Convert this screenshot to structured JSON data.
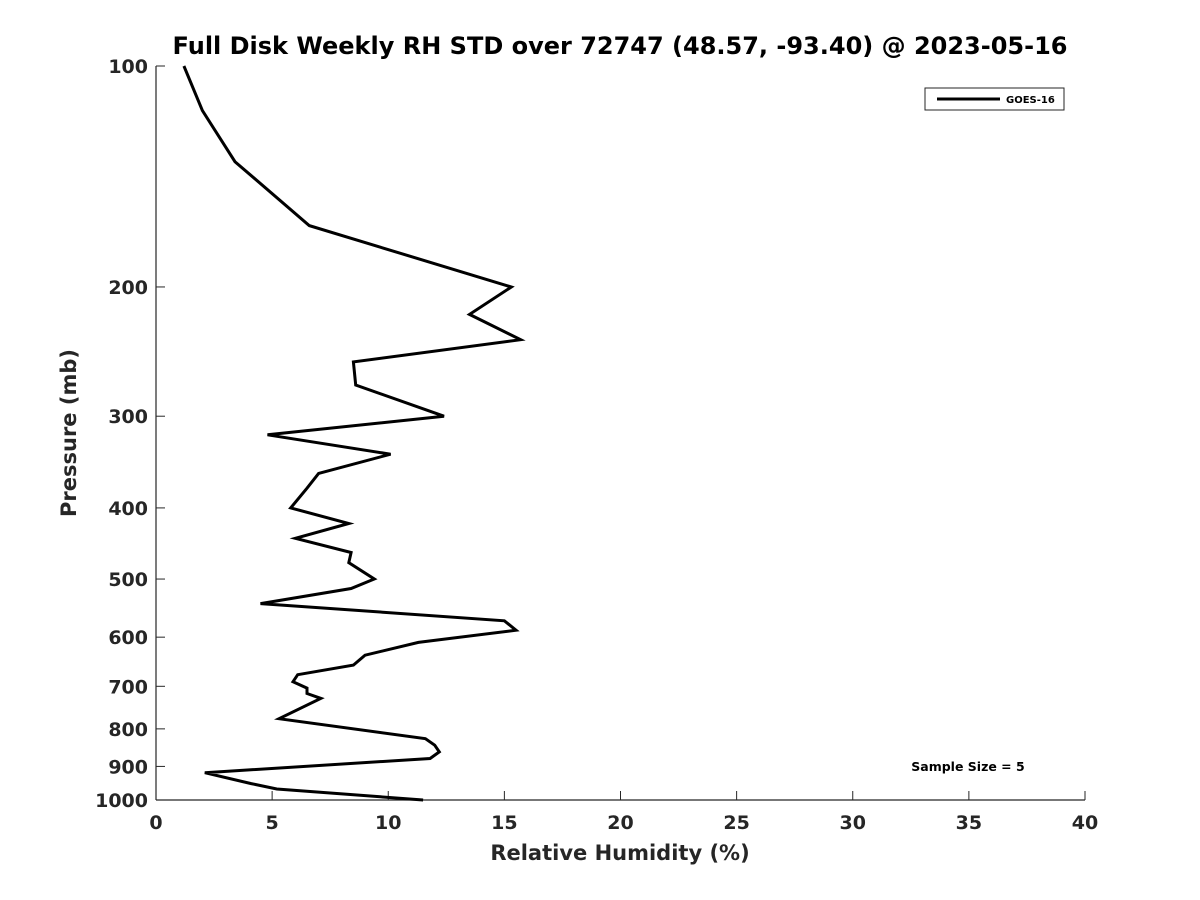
{
  "chart_data": {
    "type": "line",
    "title": "Full Disk Weekly RH STD over 72747 (48.57, -93.40) @ 2023-05-16",
    "xlabel": "Relative Humidity (%)",
    "ylabel": "Pressure (mb)",
    "xlim": [
      0,
      40
    ],
    "ylim": [
      100,
      1000
    ],
    "yscale": "log",
    "y_reversed": true,
    "x_ticks": [
      "0",
      "5",
      "10",
      "15",
      "20",
      "25",
      "30",
      "35",
      "40"
    ],
    "y_ticks": [
      "100",
      "200",
      "300",
      "400",
      "500",
      "600",
      "700",
      "800",
      "900",
      "1000"
    ],
    "grid": false,
    "legend_position": "top-right",
    "annotation": "Sample Size = 5",
    "series": [
      {
        "name": "GOES-16",
        "color": "#000000",
        "points": [
          [
            1.2,
            100
          ],
          [
            2.0,
            115
          ],
          [
            3.4,
            135
          ],
          [
            6.6,
            165
          ],
          [
            15.3,
            200
          ],
          [
            13.5,
            218
          ],
          [
            15.7,
            236
          ],
          [
            8.5,
            253
          ],
          [
            8.6,
            272
          ],
          [
            12.4,
            300
          ],
          [
            4.8,
            318
          ],
          [
            10.1,
            338
          ],
          [
            7.0,
            359
          ],
          [
            6.5,
            376
          ],
          [
            5.8,
            400
          ],
          [
            8.3,
            420
          ],
          [
            6.0,
            440
          ],
          [
            8.4,
            460
          ],
          [
            8.3,
            475
          ],
          [
            9.4,
            500
          ],
          [
            8.4,
            515
          ],
          [
            4.5,
            540
          ],
          [
            15.0,
            570
          ],
          [
            15.5,
            587
          ],
          [
            11.3,
            610
          ],
          [
            9.0,
            635
          ],
          [
            8.5,
            655
          ],
          [
            6.1,
            675
          ],
          [
            5.9,
            690
          ],
          [
            6.5,
            704
          ],
          [
            6.5,
            716
          ],
          [
            7.1,
            727
          ],
          [
            5.3,
            775
          ],
          [
            11.6,
            825
          ],
          [
            12.0,
            842
          ],
          [
            12.2,
            860
          ],
          [
            11.8,
            878
          ],
          [
            2.1,
            918
          ],
          [
            4.1,
            950
          ],
          [
            5.2,
            966
          ],
          [
            11.5,
            1000
          ]
        ]
      }
    ]
  }
}
